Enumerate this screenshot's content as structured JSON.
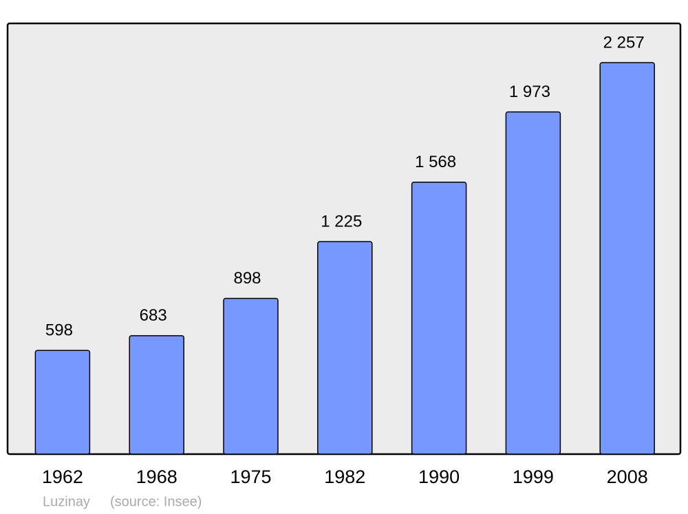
{
  "chart_data": {
    "type": "bar",
    "categories": [
      "1962",
      "1968",
      "1975",
      "1982",
      "1990",
      "1999",
      "2008"
    ],
    "values": [
      598,
      683,
      898,
      1225,
      1568,
      1973,
      2257
    ],
    "value_labels": [
      "598",
      "683",
      "898",
      "1 225",
      "1 568",
      "1 973",
      "2 257"
    ],
    "color": "#7799ff",
    "place": "Luzinay",
    "source": "(source: Insee)"
  }
}
